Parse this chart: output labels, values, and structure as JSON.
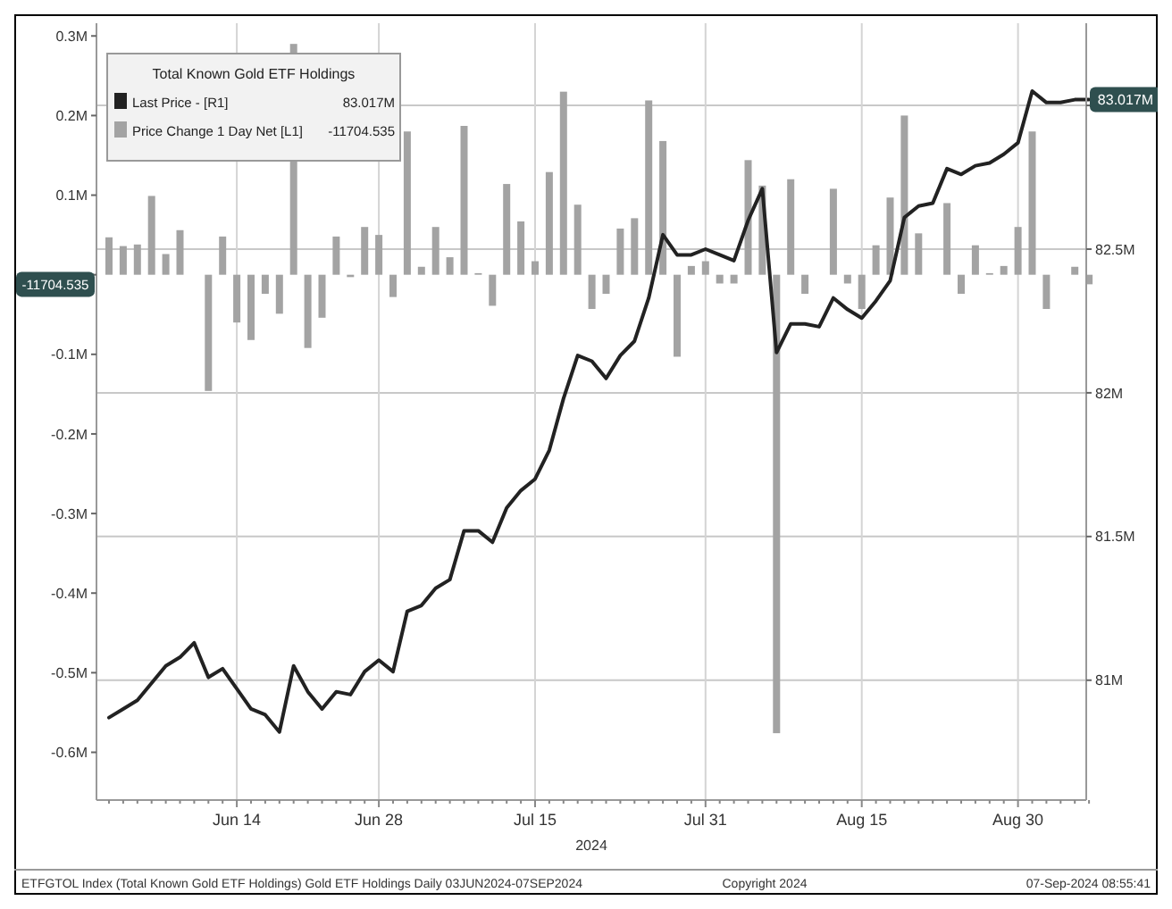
{
  "chart_data": {
    "type": "bar",
    "legend_title": "Total Known Gold ETF Holdings",
    "xlabel": "2024",
    "categories": [
      null,
      null,
      null,
      null,
      null,
      null,
      null,
      null,
      null,
      "Jun 14",
      null,
      null,
      null,
      null,
      null,
      null,
      null,
      null,
      null,
      "Jun 28",
      null,
      null,
      null,
      null,
      null,
      null,
      null,
      null,
      null,
      null,
      "Jul 15",
      null,
      null,
      null,
      null,
      null,
      null,
      null,
      null,
      null,
      null,
      null,
      "Jul 31",
      null,
      null,
      null,
      null,
      null,
      null,
      null,
      null,
      null,
      null,
      "Aug 15",
      null,
      null,
      null,
      null,
      null,
      null,
      null,
      null,
      null,
      null,
      "Aug 30",
      null,
      null,
      null,
      null,
      null
    ],
    "series": [
      {
        "name": "Last Price - [R1]",
        "type": "line",
        "axis": "y2",
        "color": "#222222",
        "values": [
          80.87,
          80.9,
          80.93,
          80.99,
          81.05,
          81.08,
          81.13,
          81.01,
          81.04,
          80.97,
          80.9,
          80.88,
          80.82,
          81.05,
          80.96,
          80.9,
          80.96,
          80.95,
          81.03,
          81.07,
          81.03,
          81.24,
          81.26,
          81.32,
          81.35,
          81.52,
          81.52,
          81.48,
          81.6,
          81.66,
          81.7,
          81.8,
          81.98,
          82.13,
          82.11,
          82.05,
          82.13,
          82.18,
          82.33,
          82.55,
          82.48,
          82.48,
          82.5,
          82.48,
          82.46,
          82.6,
          82.71,
          82.14,
          82.24,
          82.24,
          82.23,
          82.33,
          82.29,
          82.26,
          82.32,
          82.39,
          82.61,
          82.65,
          82.66,
          82.78,
          82.76,
          82.79,
          82.8,
          82.83,
          82.87,
          83.05,
          83.01,
          83.01,
          83.02,
          83.02
        ]
      },
      {
        "name": "Price Change 1 Day Net [L1]",
        "color": "#a3a3a3",
        "values": [
          0.047,
          0.036,
          0.038,
          0.099,
          0.026,
          0.056,
          0,
          -0.146,
          0.048,
          -0.06,
          -0.082,
          -0.024,
          -0.049,
          0.29,
          -0.092,
          -0.054,
          0.048,
          -0.003,
          0.06,
          0.05,
          -0.028,
          0.18,
          0.01,
          0.06,
          0.022,
          0.187,
          0.002,
          -0.039,
          0.114,
          0.067,
          0.017,
          0.129,
          0.23,
          0.088,
          -0.043,
          -0.024,
          0.058,
          0.071,
          0.219,
          0.168,
          -0.103,
          0.011,
          0.017,
          -0.011,
          -0.011,
          0.144,
          0.112,
          -0.576,
          0.12,
          -0.024,
          0,
          0.108,
          -0.011,
          -0.043,
          0.037,
          0.097,
          0.2,
          0.052,
          0,
          0.09,
          -0.024,
          0.037,
          0.002,
          0.011,
          0.06,
          0.18,
          -0.043,
          0,
          0.01,
          -0.012
        ]
      }
    ],
    "ylim": [
      -0.66,
      0.316
    ],
    "yticks": [
      {
        "value": 0.3,
        "label": "0.3M"
      },
      {
        "value": 0.2,
        "label": "0.2M"
      },
      {
        "value": 0.1,
        "label": "0.1M"
      },
      {
        "value": 0,
        "label": null
      },
      {
        "value": -0.1,
        "label": "-0.1M"
      },
      {
        "value": -0.2,
        "label": "-0.2M"
      },
      {
        "value": -0.3,
        "label": "-0.3M"
      },
      {
        "value": -0.4,
        "label": "-0.4M"
      },
      {
        "value": -0.5,
        "label": "-0.5M"
      },
      {
        "value": -0.6,
        "label": "-0.6M"
      }
    ],
    "y2lim": [
      80.583,
      83.286
    ],
    "y2ticks": [
      {
        "value": 81,
        "label": "81M"
      },
      {
        "value": 81.5,
        "label": "81.5M"
      },
      {
        "value": 82,
        "label": "82M"
      },
      {
        "value": 82.5,
        "label": "82.5M"
      },
      {
        "value": 83,
        "label": null
      }
    ],
    "grid": true,
    "legend": "top left",
    "annotations": [
      "83.017M",
      "-11704.535",
      "ETFGTOL Index (Total Known Gold ETF Holdings) Gold ETF Holdings Daily 03JUN2024-07SEP2024",
      "Copyright 2024",
      "07-Sep-2024 08:55:41"
    ]
  }
}
